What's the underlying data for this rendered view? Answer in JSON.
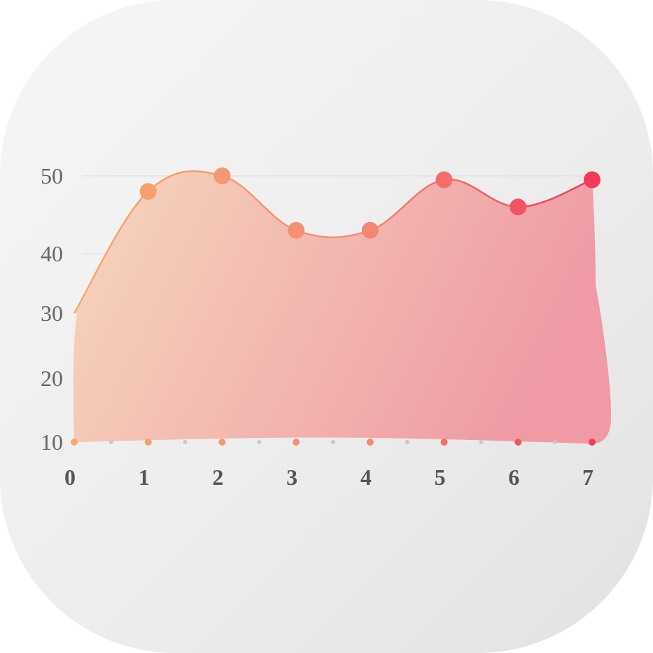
{
  "chart_data": {
    "type": "area",
    "title": "",
    "xlabel": "",
    "ylabel": "",
    "x": [
      0,
      1,
      2,
      3,
      4,
      5,
      6,
      7
    ],
    "series": [
      {
        "values": [
          30,
          48,
          50,
          43,
          43,
          49.5,
          46,
          49.5
        ]
      }
    ],
    "x_ticks": [
      "0",
      "1",
      "2",
      "3",
      "4",
      "5",
      "6",
      "7"
    ],
    "y_ticks": [
      "10",
      "20",
      "30",
      "40",
      "50"
    ],
    "ylim": [
      10,
      50
    ],
    "xlim": [
      0,
      7
    ],
    "grid": true,
    "legend": "none",
    "colors": {
      "start": "#f9a76a",
      "mid": "#f48a74",
      "end": "#f43a58",
      "fill_start": "#f6d7bc",
      "fill_end": "#ef9aa5",
      "grid": "#dcdcdc",
      "minor_dot": "#c8c8c8"
    }
  }
}
